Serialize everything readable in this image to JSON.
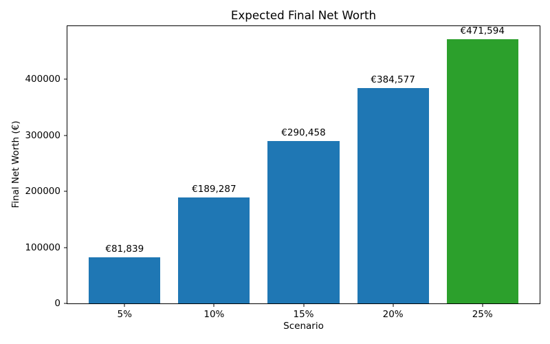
{
  "figure": {
    "background": "#ffffff",
    "title": "Expected Final Net Worth"
  },
  "chart_data": {
    "type": "bar",
    "title": "Expected Final Net Worth",
    "xlabel": "Scenario",
    "ylabel": "Final Net Worth (€)",
    "categories": [
      "5%",
      "10%",
      "15%",
      "20%",
      "25%"
    ],
    "values": [
      81839,
      189287,
      290458,
      384577,
      471594
    ],
    "value_labels": [
      "€81,839",
      "€189,287",
      "€290,458",
      "€384,577",
      "€471,594"
    ],
    "bar_colors": [
      "#1f77b4",
      "#1f77b4",
      "#1f77b4",
      "#1f77b4",
      "#2ca02c"
    ],
    "accent_blue": "#1f77b4",
    "accent_green": "#2ca02c",
    "yticks": [
      0,
      100000,
      200000,
      300000,
      400000
    ],
    "ytick_labels": [
      "0",
      "100000",
      "200000",
      "300000",
      "400000"
    ],
    "ylim": [
      0,
      495174
    ],
    "xlim": [
      -0.64,
      4.64
    ],
    "bar_width": 0.8,
    "grid": false,
    "legend_position": "none"
  }
}
